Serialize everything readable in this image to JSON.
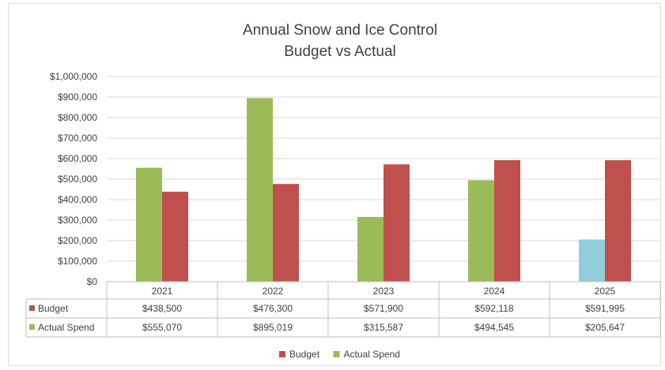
{
  "chart_data": {
    "type": "bar",
    "title": "Annual Snow and Ice Control",
    "subtitle": "Budget vs Actual",
    "xlabel": "",
    "ylabel": "",
    "categories": [
      "2021",
      "2022",
      "2023",
      "2024",
      "2025"
    ],
    "ylim": [
      0,
      1000000
    ],
    "yticks": [
      "$0",
      "$100,000",
      "$200,000",
      "$300,000",
      "$400,000",
      "$500,000",
      "$600,000",
      "$700,000",
      "$800,000",
      "$900,000",
      "$1,000,000"
    ],
    "grid": true,
    "legend_position": "bottom",
    "series": [
      {
        "name": "Actual Spend",
        "color": "#9bbb59",
        "values": [
          555070,
          895019,
          315587,
          494545,
          205647
        ],
        "point_colors": [
          "#9bbb59",
          "#9bbb59",
          "#9bbb59",
          "#9bbb59",
          "#92cddc"
        ]
      },
      {
        "name": "Budget",
        "color": "#c0504d",
        "values": [
          438500,
          476300,
          571900,
          592118,
          591995
        ]
      }
    ],
    "data_table": {
      "rows": [
        {
          "series": "Budget",
          "color": "#c0504d",
          "cells": [
            "$438,500",
            "$476,300",
            "$571,900",
            "$592,118",
            "$591,995"
          ]
        },
        {
          "series": "Actual Spend",
          "color": "#9bbb59",
          "cells": [
            "$555,070",
            "$895,019",
            "$315,587",
            "$494,545",
            "$205,647"
          ]
        }
      ]
    },
    "legend": [
      {
        "name": "Budget",
        "color": "#c0504d"
      },
      {
        "name": "Actual Spend",
        "color": "#9bbb59"
      }
    ]
  }
}
